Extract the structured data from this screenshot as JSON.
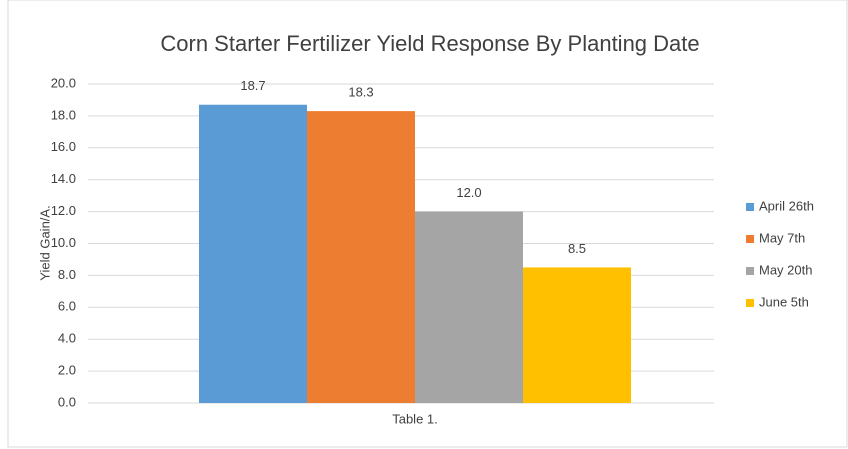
{
  "chart_data": {
    "type": "bar",
    "title": "Corn Starter Fertilizer Yield Response By Planting Date",
    "y_label": "Yield Gain/A.",
    "categories": [
      "Table 1."
    ],
    "series": [
      {
        "name": "April 26th",
        "color": "#5b9bd5",
        "values": [
          18.7
        ],
        "value_labels": [
          "18.7"
        ]
      },
      {
        "name": "May 7th",
        "color": "#ed7d31",
        "values": [
          18.3
        ],
        "value_labels": [
          "18.3"
        ]
      },
      {
        "name": "May 20th",
        "color": "#a5a5a5",
        "values": [
          12.0
        ],
        "value_labels": [
          "12.0"
        ]
      },
      {
        "name": "June 5th",
        "color": "#ffc000",
        "values": [
          8.5
        ],
        "value_labels": [
          "8.5"
        ]
      }
    ],
    "ylim": [
      0,
      20
    ],
    "yticks": [
      {
        "value": 0,
        "label": "0.0"
      },
      {
        "value": 2,
        "label": "2.0"
      },
      {
        "value": 4,
        "label": "4.0"
      },
      {
        "value": 6,
        "label": "6.0"
      },
      {
        "value": 8,
        "label": "8.0"
      },
      {
        "value": 10,
        "label": "10.0"
      },
      {
        "value": 12,
        "label": "12.0"
      },
      {
        "value": 14,
        "label": "14.0"
      },
      {
        "value": 16,
        "label": "16.0"
      },
      {
        "value": 18,
        "label": "18.0"
      },
      {
        "value": 20,
        "label": "20.0"
      }
    ],
    "grid": true,
    "legend": "right"
  }
}
